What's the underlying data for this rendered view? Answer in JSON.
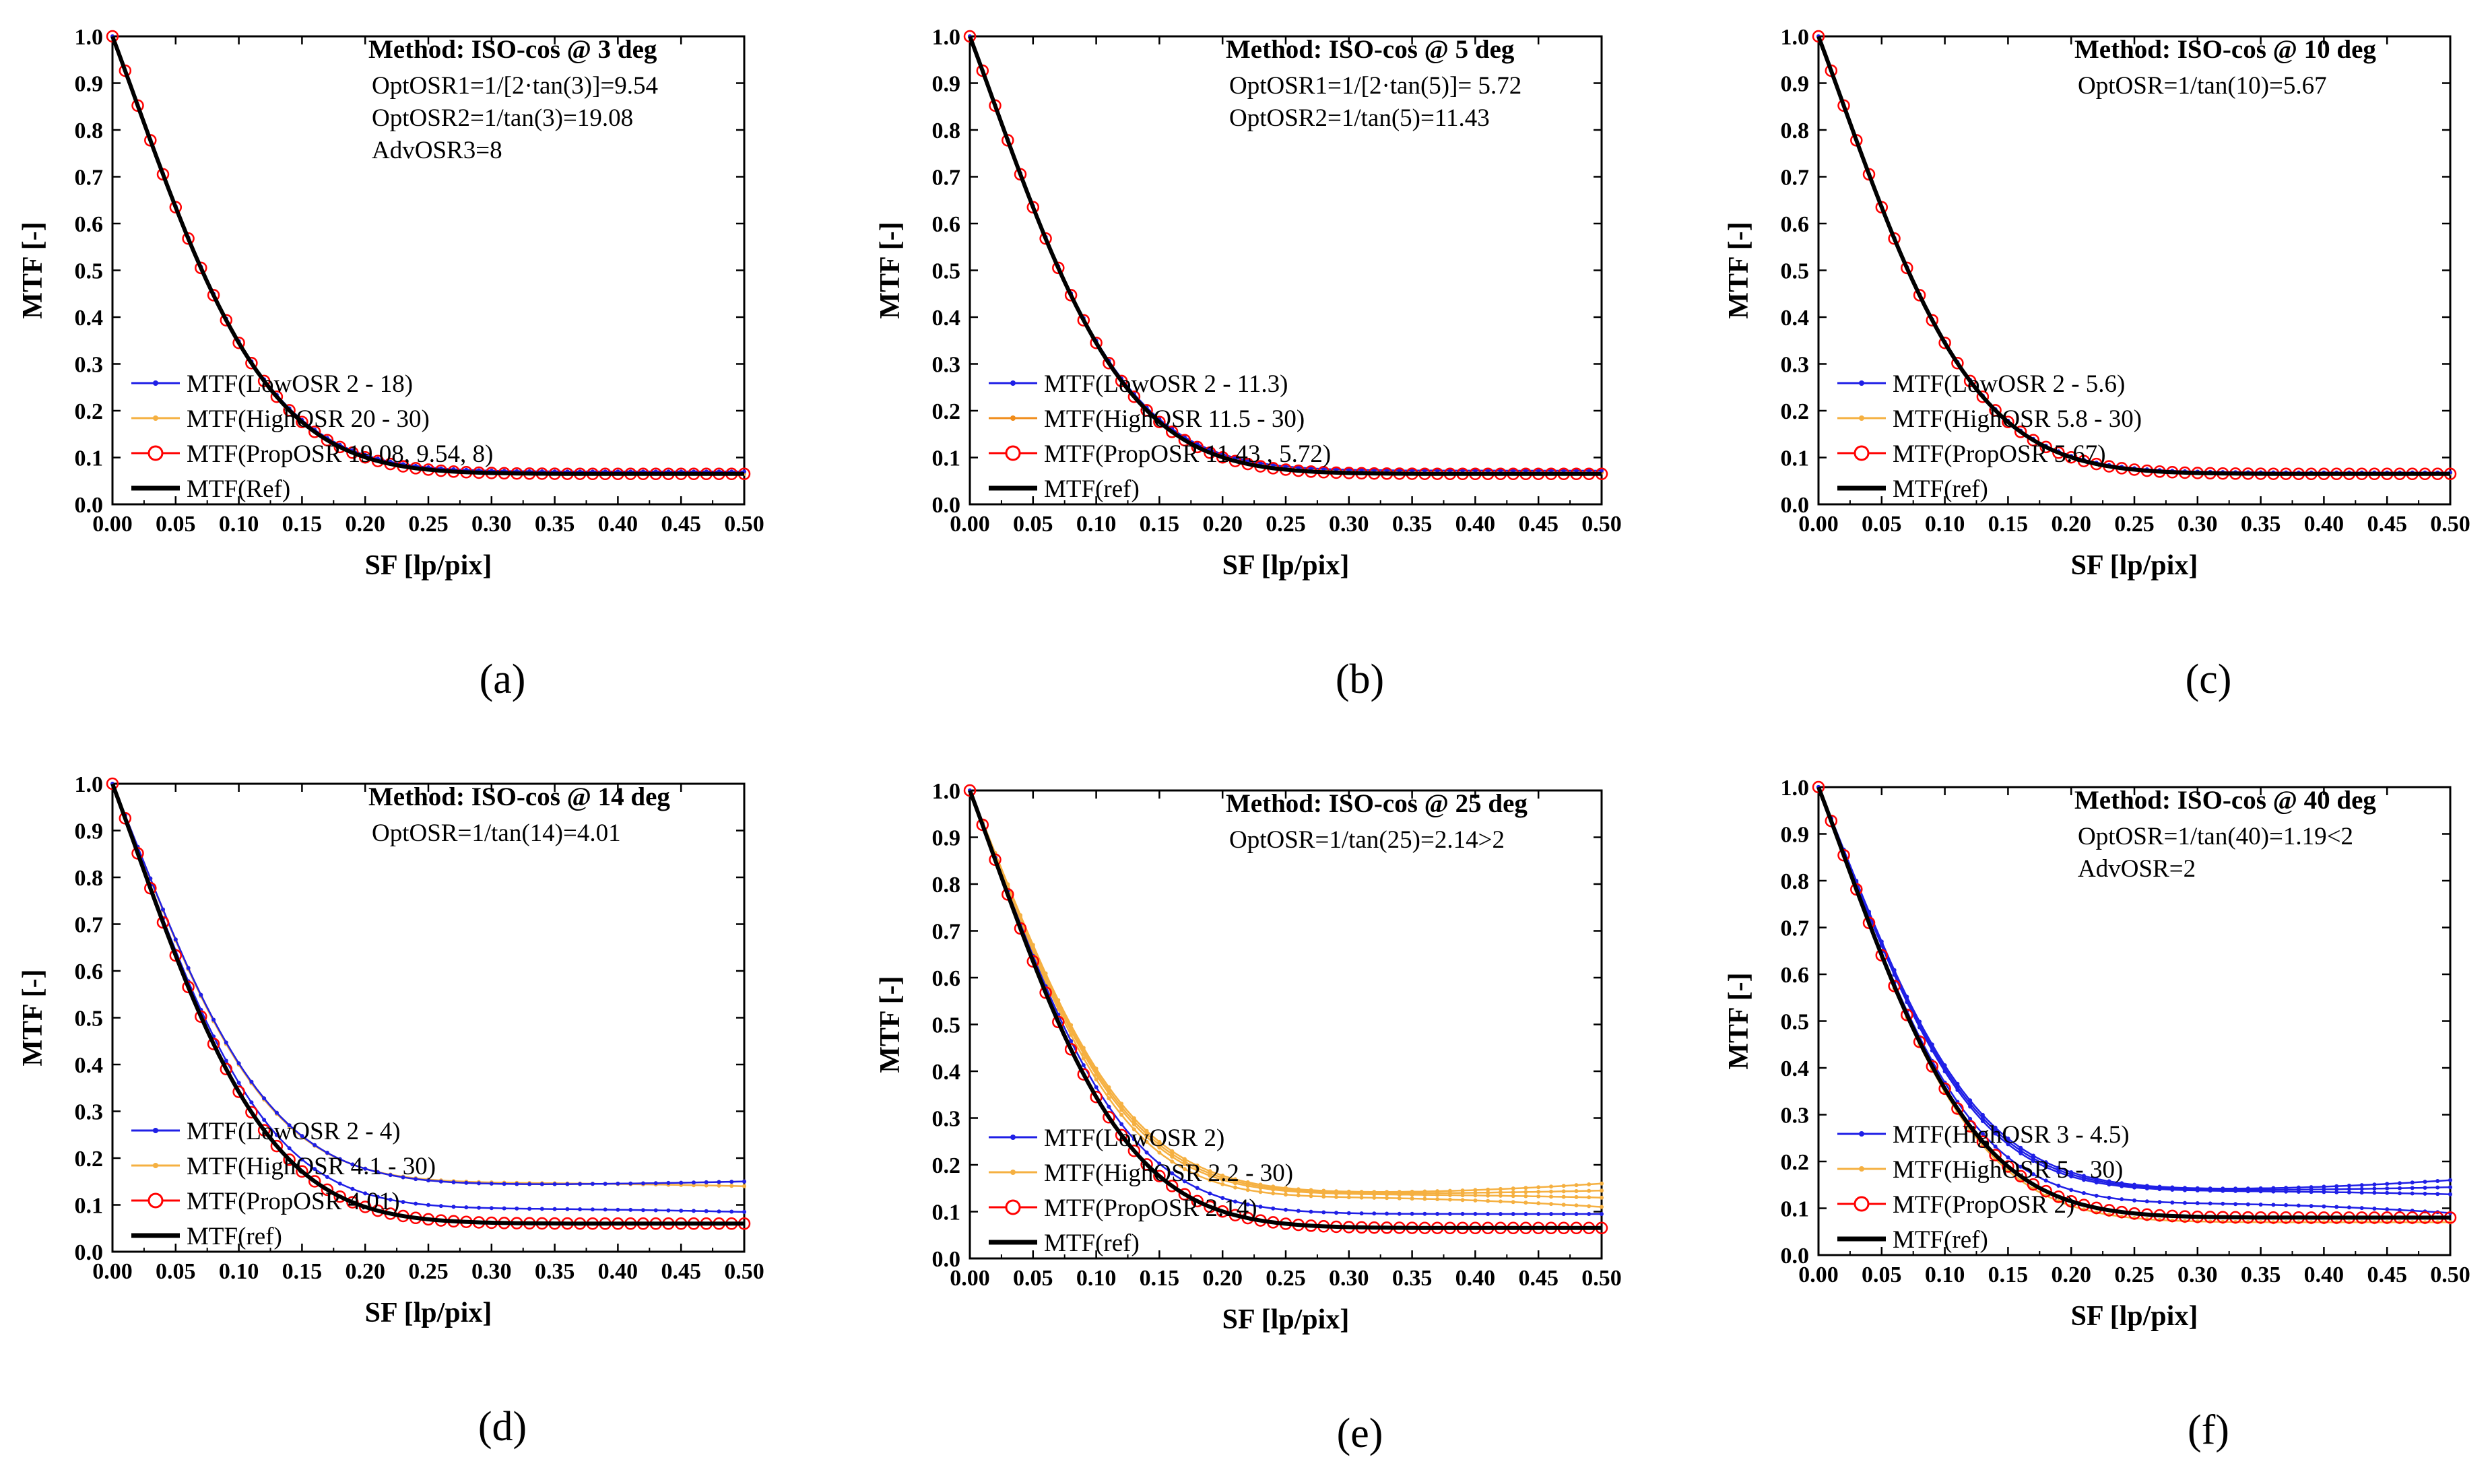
{
  "figure": {
    "colors": {
      "low": "#1f1fe6",
      "high": "#f5b041",
      "high_dark": "#f08c1a",
      "prop": "#ff0000",
      "ref": "#000000"
    }
  },
  "panels": [
    {
      "caption": "(a)",
      "method": "Method: ISO-cos @ 3 deg",
      "notes": [
        "OptOSR1=1/[2·tan(3)]=9.54",
        "OptOSR2=1/tan(3)=19.08",
        "AdvOSR3=8"
      ],
      "legend": [
        "MTF(LowOSR   2 - 18)",
        "MTF(HighOSR  20 - 30)",
        "MTF(PropOSR  19.08, 9.54, 8)",
        "MTF(Ref)"
      ],
      "legend_styles": [
        "low",
        "high",
        "prop",
        "ref"
      ],
      "chart_data": {
        "type": "line",
        "xlabel": "SF [lp/pix]",
        "ylabel": "MTF [-]",
        "xlim": [
          0,
          0.5
        ],
        "ylim": [
          0,
          1.0
        ],
        "xticks": [
          "0.00",
          "0.05",
          "0.10",
          "0.15",
          "0.20",
          "0.25",
          "0.30",
          "0.35",
          "0.40",
          "0.45",
          "0.50"
        ],
        "yticks": [
          "0.0",
          "0.1",
          "0.2",
          "0.3",
          "0.4",
          "0.5",
          "0.6",
          "0.7",
          "0.8",
          "0.9",
          "1.0"
        ],
        "ref_curve": {
          "x0": 0.09,
          "sigma": 0.1524,
          "y_end": 0.065
        },
        "series": [
          {
            "name": "MTF(LowOSR 2 - 18)",
            "style": "low",
            "tails": [
              0.07
            ]
          },
          {
            "name": "MTF(HighOSR 20 - 30)",
            "style": "high",
            "tails": [
              0.065
            ]
          },
          {
            "name": "MTF(PropOSR 19.08, 9.54, 8)",
            "style": "prop",
            "tails": [
              0.065
            ]
          },
          {
            "name": "MTF(Ref)",
            "style": "ref",
            "tails": [
              0.065
            ]
          }
        ]
      }
    },
    {
      "caption": "(b)",
      "method": "Method: ISO-cos @ 5 deg",
      "notes": [
        "OptOSR1=1/[2·tan(5)]= 5.72",
        "OptOSR2=1/tan(5)=11.43"
      ],
      "legend": [
        "MTF(LowOSR   2 - 11.3)",
        "MTF(HighOSR  11.5 - 30)",
        "MTF(PropOSR  11.43 , 5.72)",
        "MTF(ref)"
      ],
      "legend_styles": [
        "low",
        "high_dark",
        "prop",
        "ref"
      ],
      "chart_data": {
        "type": "line",
        "xlabel": "SF [lp/pix]",
        "ylabel": "MTF [-]",
        "xlim": [
          0,
          0.5
        ],
        "ylim": [
          0,
          1.0
        ],
        "xticks": [
          "0.00",
          "0.05",
          "0.10",
          "0.15",
          "0.20",
          "0.25",
          "0.30",
          "0.35",
          "0.40",
          "0.45",
          "0.50"
        ],
        "yticks": [
          "0.0",
          "0.1",
          "0.2",
          "0.3",
          "0.4",
          "0.5",
          "0.6",
          "0.7",
          "0.8",
          "0.9",
          "1.0"
        ],
        "ref_curve": {
          "x0": 0.09,
          "sigma": 0.1524,
          "y_end": 0.065
        },
        "series": [
          {
            "name": "MTF(LowOSR 2 - 11.3)",
            "style": "low",
            "tails": [
              0.072
            ]
          },
          {
            "name": "MTF(HighOSR 11.5 - 30)",
            "style": "high_dark",
            "tails": [
              0.068
            ]
          },
          {
            "name": "MTF(PropOSR 11.43, 5.72)",
            "style": "prop",
            "tails": [
              0.065
            ]
          },
          {
            "name": "MTF(ref)",
            "style": "ref",
            "tails": [
              0.065
            ]
          }
        ]
      }
    },
    {
      "caption": "(c)",
      "method": "Method: ISO-cos @ 10 deg",
      "notes": [
        "OptOSR=1/tan(10)=5.67"
      ],
      "legend": [
        "MTF(LowOSR   2 - 5.6)",
        "MTF(HighOSR  5.8 - 30)",
        "MTF(PropOSR  5.67)",
        "MTF(ref)"
      ],
      "legend_styles": [
        "low",
        "high",
        "prop",
        "ref"
      ],
      "chart_data": {
        "type": "line",
        "xlabel": "SF [lp/pix]",
        "ylabel": "MTF [-]",
        "xlim": [
          0,
          0.5
        ],
        "ylim": [
          0,
          1.0
        ],
        "xticks": [
          "0.00",
          "0.05",
          "0.10",
          "0.15",
          "0.20",
          "0.25",
          "0.30",
          "0.35",
          "0.40",
          "0.45",
          "0.50"
        ],
        "yticks": [
          "0.0",
          "0.1",
          "0.2",
          "0.3",
          "0.4",
          "0.5",
          "0.6",
          "0.7",
          "0.8",
          "0.9",
          "1.0"
        ],
        "ref_curve": {
          "x0": 0.09,
          "sigma": 0.1524,
          "y_end": 0.065
        },
        "series": [
          {
            "name": "MTF(LowOSR 2 - 5.6)",
            "style": "low",
            "tails": [
              0.068
            ]
          },
          {
            "name": "MTF(HighOSR 5.8 - 30)",
            "style": "high",
            "tails": [
              0.066
            ]
          },
          {
            "name": "MTF(PropOSR 5.67)",
            "style": "prop",
            "tails": [
              0.065
            ]
          },
          {
            "name": "MTF(ref)",
            "style": "ref",
            "tails": [
              0.065
            ]
          }
        ]
      }
    },
    {
      "caption": "(d)",
      "method": "Method: ISO-cos @ 14 deg",
      "notes": [
        "OptOSR=1/tan(14)=4.01"
      ],
      "legend": [
        "MTF(LowOSR    2  -  4)",
        "MTF(HighOSR    4.1 - 30)",
        "MTF(PropOSR    4.01)",
        "MTF(ref)"
      ],
      "legend_styles": [
        "low",
        "high",
        "prop",
        "ref"
      ],
      "chart_data": {
        "type": "line",
        "xlabel": "SF [lp/pix]",
        "ylabel": "MTF [-]",
        "xlim": [
          0,
          0.5
        ],
        "ylim": [
          0,
          1.0
        ],
        "xticks": [
          "0.00",
          "0.05",
          "0.10",
          "0.15",
          "0.20",
          "0.25",
          "0.30",
          "0.35",
          "0.40",
          "0.45",
          "0.50"
        ],
        "yticks": [
          "0.0",
          "0.1",
          "0.2",
          "0.3",
          "0.4",
          "0.5",
          "0.6",
          "0.7",
          "0.8",
          "0.9",
          "1.0"
        ],
        "ref_curve": {
          "x0": 0.09,
          "sigma": 0.1524,
          "y_end": 0.06
        },
        "series": [
          {
            "name": "MTF(LowOSR 2 - 4)",
            "style": "low",
            "tails": [
              0.15,
              0.085
            ]
          },
          {
            "name": "MTF(HighOSR 4.1 - 30)",
            "style": "high",
            "tails": [
              0.15,
              0.14
            ]
          },
          {
            "name": "MTF(PropOSR 4.01)",
            "style": "prop",
            "tails": [
              0.06
            ]
          },
          {
            "name": "MTF(ref)",
            "style": "ref",
            "tails": [
              0.06
            ]
          }
        ]
      }
    },
    {
      "caption": "(e)",
      "method": "Method: ISO-cos @ 25 deg",
      "notes": [
        "OptOSR=1/tan(25)=2.14>2"
      ],
      "legend": [
        "MTF(LowOSR  2)",
        "MTF(HighOSR  2.2 - 30)",
        "MTF(PropOSR  2.14)",
        "MTF(ref)"
      ],
      "legend_styles": [
        "low",
        "high",
        "prop",
        "ref"
      ],
      "chart_data": {
        "type": "line",
        "xlabel": "SF [lp/pix]",
        "ylabel": "MTF [-]",
        "xlim": [
          0,
          0.5
        ],
        "ylim": [
          0,
          1.0
        ],
        "xticks": [
          "0.00",
          "0.05",
          "0.10",
          "0.15",
          "0.20",
          "0.25",
          "0.30",
          "0.35",
          "0.40",
          "0.45",
          "0.50"
        ],
        "yticks": [
          "0.0",
          "0.1",
          "0.2",
          "0.3",
          "0.4",
          "0.5",
          "0.6",
          "0.7",
          "0.8",
          "0.9",
          "1.0"
        ],
        "ref_curve": {
          "x0": 0.09,
          "sigma": 0.1524,
          "y_end": 0.065
        },
        "series": [
          {
            "name": "MTF(LowOSR 2)",
            "style": "low",
            "tails": [
              0.095
            ]
          },
          {
            "name": "MTF(HighOSR 2.2 - 30)",
            "style": "high",
            "tails": [
              0.16,
              0.145,
              0.13,
              0.11
            ]
          },
          {
            "name": "MTF(PropOSR 2.14)",
            "style": "prop",
            "tails": [
              0.065
            ]
          },
          {
            "name": "MTF(ref)",
            "style": "ref",
            "tails": [
              0.065
            ]
          }
        ]
      }
    },
    {
      "caption": "(f)",
      "method": "Method: ISO-cos @ 40 deg",
      "notes": [
        "OptOSR=1/tan(40)=1.19<2",
        "AdvOSR=2"
      ],
      "legend": [
        "MTF(HighOSR  3 - 4.5)",
        "MTF(HighOSR  5 - 30)",
        "MTF(PropOSR  2)",
        "MTF(ref)"
      ],
      "legend_styles": [
        "low",
        "high",
        "prop",
        "ref"
      ],
      "chart_data": {
        "type": "line",
        "xlabel": "SF [lp/pix]",
        "ylabel": "MTF [-]",
        "xlim": [
          0,
          0.5
        ],
        "ylim": [
          0,
          1.0
        ],
        "xticks": [
          "0.00",
          "0.05",
          "0.10",
          "0.15",
          "0.20",
          "0.25",
          "0.30",
          "0.35",
          "0.40",
          "0.45",
          "0.50"
        ],
        "yticks": [
          "0.0",
          "0.1",
          "0.2",
          "0.3",
          "0.4",
          "0.5",
          "0.6",
          "0.7",
          "0.8",
          "0.9",
          "1.0"
        ],
        "ref_curve": {
          "x0": 0.09,
          "sigma": 0.1524,
          "y_end": 0.08
        },
        "series": [
          {
            "name": "MTF(HighOSR 3 - 4.5)",
            "style": "low",
            "tails": [
              0.16,
              0.145,
              0.13,
              0.09
            ]
          },
          {
            "name": "MTF(HighOSR 5 - 30)",
            "style": "high",
            "tails": [
              0.07
            ]
          },
          {
            "name": "MTF(PropOSR 2)",
            "style": "prop",
            "tails": [
              0.08
            ]
          },
          {
            "name": "MTF(ref)",
            "style": "ref",
            "tails": [
              0.08
            ]
          }
        ]
      }
    }
  ]
}
